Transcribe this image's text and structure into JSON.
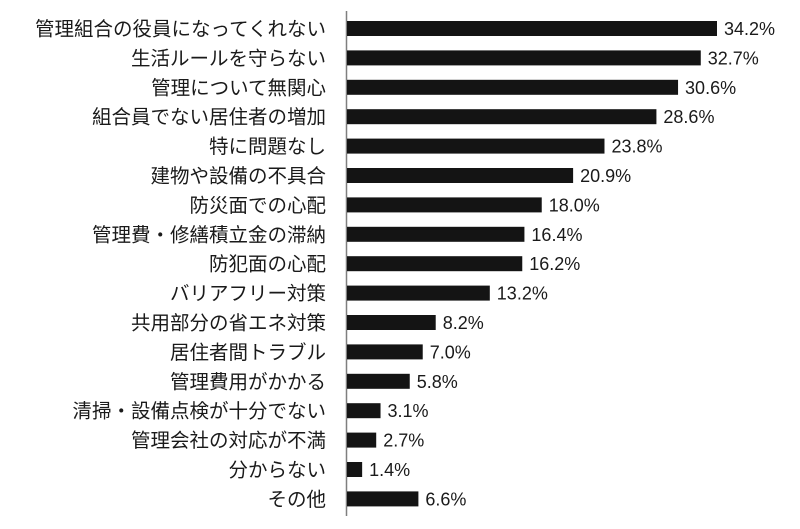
{
  "chart_data": {
    "type": "bar",
    "orientation": "horizontal",
    "categories": [
      "管理組合の役員になってくれない",
      "生活ルールを守らない",
      "管理について無関心",
      "組合員でない居住者の増加",
      "特に問題なし",
      "建物や設備の不具合",
      "防災面での心配",
      "管理費・修繕積立金の滞納",
      "防犯面の心配",
      "バリアフリー対策",
      "共用部分の省エネ対策",
      "居住者間トラブル",
      "管理費用がかかる",
      "清掃・設備点検が十分でない",
      "管理会社の対応が不満",
      "分からない",
      "その他"
    ],
    "values": [
      34.2,
      32.7,
      30.6,
      28.6,
      23.8,
      20.9,
      18.0,
      16.4,
      16.2,
      13.2,
      8.2,
      7.0,
      5.8,
      3.1,
      2.7,
      1.4,
      6.6
    ],
    "value_labels": [
      "34.2%",
      "32.7%",
      "30.6%",
      "28.6%",
      "23.8%",
      "20.9%",
      "18.0%",
      "16.4%",
      "16.2%",
      "13.2%",
      "8.2%",
      "7.0%",
      "5.8%",
      "3.1%",
      "2.7%",
      "1.4%",
      "6.6%"
    ],
    "bar_color": "#141414",
    "axis_color": "#7f7f7f",
    "grid": false,
    "legend": "none"
  }
}
